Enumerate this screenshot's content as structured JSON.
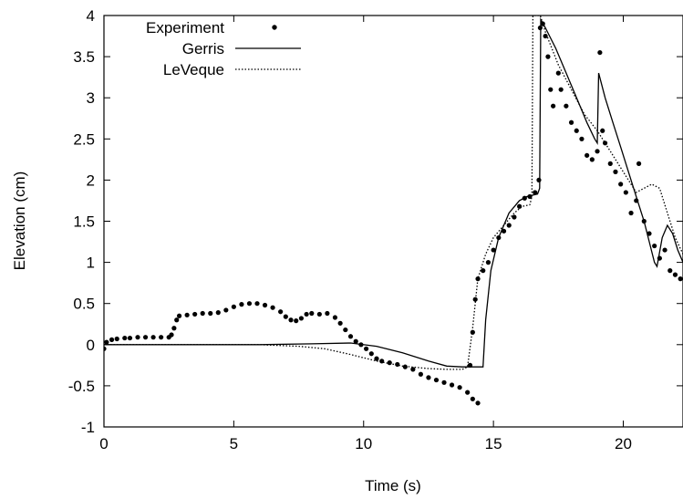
{
  "chart_data": {
    "type": "line",
    "xlabel": "Time (s)",
    "ylabel": "Elevation (cm)",
    "xlim": [
      0,
      22.3
    ],
    "ylim": [
      -1,
      4
    ],
    "x_ticks": [
      0,
      5,
      10,
      15,
      20
    ],
    "y_ticks": [
      -1,
      -0.5,
      0,
      0.5,
      1,
      1.5,
      2,
      2.5,
      3,
      3.5,
      4
    ],
    "x_tick_labels": [
      "0",
      "5",
      "10",
      "15",
      "20"
    ],
    "y_tick_labels": [
      "-1",
      "-0.5",
      "0",
      "0.5",
      "1",
      "1.5",
      "2",
      "2.5",
      "3",
      "3.5",
      "4"
    ],
    "grid": false,
    "legend_position": "top-left",
    "series": [
      {
        "name": "Experiment",
        "style": "points",
        "color": "#000000",
        "points": [
          [
            0.0,
            -0.05
          ],
          [
            0.1,
            0.03
          ],
          [
            0.3,
            0.06
          ],
          [
            0.5,
            0.07
          ],
          [
            0.8,
            0.08
          ],
          [
            1.0,
            0.08
          ],
          [
            1.3,
            0.09
          ],
          [
            1.6,
            0.09
          ],
          [
            1.9,
            0.09
          ],
          [
            2.2,
            0.09
          ],
          [
            2.5,
            0.09
          ],
          [
            2.6,
            0.12
          ],
          [
            2.7,
            0.2
          ],
          [
            2.8,
            0.3
          ],
          [
            2.9,
            0.35
          ],
          [
            3.2,
            0.36
          ],
          [
            3.5,
            0.37
          ],
          [
            3.8,
            0.38
          ],
          [
            4.1,
            0.38
          ],
          [
            4.4,
            0.39
          ],
          [
            4.7,
            0.42
          ],
          [
            5.0,
            0.46
          ],
          [
            5.3,
            0.49
          ],
          [
            5.6,
            0.5
          ],
          [
            5.9,
            0.5
          ],
          [
            6.2,
            0.48
          ],
          [
            6.5,
            0.45
          ],
          [
            6.8,
            0.4
          ],
          [
            7.0,
            0.34
          ],
          [
            7.2,
            0.3
          ],
          [
            7.4,
            0.29
          ],
          [
            7.6,
            0.32
          ],
          [
            7.8,
            0.37
          ],
          [
            8.0,
            0.38
          ],
          [
            8.3,
            0.37
          ],
          [
            8.6,
            0.38
          ],
          [
            8.9,
            0.33
          ],
          [
            9.1,
            0.26
          ],
          [
            9.3,
            0.18
          ],
          [
            9.5,
            0.1
          ],
          [
            9.7,
            0.04
          ],
          [
            9.9,
            0.0
          ],
          [
            10.1,
            -0.05
          ],
          [
            10.3,
            -0.11
          ],
          [
            10.5,
            -0.17
          ],
          [
            10.7,
            -0.2
          ],
          [
            11.0,
            -0.22
          ],
          [
            11.3,
            -0.24
          ],
          [
            11.6,
            -0.27
          ],
          [
            11.9,
            -0.3
          ],
          [
            12.2,
            -0.36
          ],
          [
            12.5,
            -0.4
          ],
          [
            12.8,
            -0.43
          ],
          [
            13.1,
            -0.46
          ],
          [
            13.4,
            -0.49
          ],
          [
            13.7,
            -0.52
          ],
          [
            14.0,
            -0.58
          ],
          [
            14.2,
            -0.66
          ],
          [
            14.4,
            -0.71
          ],
          [
            14.1,
            -0.25
          ],
          [
            14.2,
            0.15
          ],
          [
            14.3,
            0.55
          ],
          [
            14.4,
            0.8
          ],
          [
            14.6,
            0.9
          ],
          [
            14.8,
            1.0
          ],
          [
            15.0,
            1.15
          ],
          [
            15.2,
            1.3
          ],
          [
            15.4,
            1.38
          ],
          [
            15.6,
            1.45
          ],
          [
            15.8,
            1.55
          ],
          [
            16.0,
            1.68
          ],
          [
            16.2,
            1.78
          ],
          [
            16.4,
            1.8
          ],
          [
            16.6,
            1.85
          ],
          [
            16.75,
            2.0
          ],
          [
            16.8,
            3.85
          ],
          [
            16.9,
            3.9
          ],
          [
            17.0,
            3.75
          ],
          [
            17.1,
            3.5
          ],
          [
            17.2,
            3.1
          ],
          [
            17.3,
            2.9
          ],
          [
            17.5,
            3.3
          ],
          [
            17.6,
            3.1
          ],
          [
            17.8,
            2.9
          ],
          [
            18.0,
            2.7
          ],
          [
            18.2,
            2.6
          ],
          [
            18.4,
            2.5
          ],
          [
            18.6,
            2.3
          ],
          [
            18.8,
            2.25
          ],
          [
            19.0,
            2.35
          ],
          [
            19.1,
            3.55
          ],
          [
            19.2,
            2.6
          ],
          [
            19.3,
            2.45
          ],
          [
            19.5,
            2.2
          ],
          [
            19.7,
            2.1
          ],
          [
            19.9,
            1.95
          ],
          [
            20.1,
            1.85
          ],
          [
            20.3,
            1.6
          ],
          [
            20.5,
            1.75
          ],
          [
            20.6,
            2.2
          ],
          [
            20.8,
            1.5
          ],
          [
            21.0,
            1.35
          ],
          [
            21.2,
            1.2
          ],
          [
            21.4,
            1.05
          ],
          [
            21.6,
            1.15
          ],
          [
            21.8,
            0.9
          ],
          [
            22.0,
            0.85
          ],
          [
            22.2,
            0.8
          ]
        ]
      },
      {
        "name": "Gerris",
        "style": "solid",
        "color": "#000000",
        "points": [
          [
            0.0,
            0.0
          ],
          [
            2.0,
            0.0
          ],
          [
            4.0,
            0.0
          ],
          [
            6.0,
            0.0
          ],
          [
            8.0,
            0.01
          ],
          [
            9.5,
            0.02
          ],
          [
            10.5,
            -0.02
          ],
          [
            11.5,
            -0.1
          ],
          [
            12.5,
            -0.2
          ],
          [
            13.2,
            -0.26
          ],
          [
            13.8,
            -0.27
          ],
          [
            14.6,
            -0.27
          ],
          [
            14.7,
            0.3
          ],
          [
            14.9,
            0.9
          ],
          [
            15.2,
            1.3
          ],
          [
            15.6,
            1.6
          ],
          [
            16.0,
            1.75
          ],
          [
            16.3,
            1.8
          ],
          [
            16.7,
            1.83
          ],
          [
            16.78,
            1.9
          ],
          [
            16.82,
            3.95
          ],
          [
            17.0,
            3.85
          ],
          [
            17.4,
            3.6
          ],
          [
            17.8,
            3.3
          ],
          [
            18.2,
            3.0
          ],
          [
            18.6,
            2.7
          ],
          [
            18.9,
            2.5
          ],
          [
            19.0,
            2.45
          ],
          [
            19.05,
            3.3
          ],
          [
            19.3,
            3.0
          ],
          [
            19.6,
            2.7
          ],
          [
            19.9,
            2.4
          ],
          [
            20.2,
            2.1
          ],
          [
            20.5,
            1.8
          ],
          [
            20.8,
            1.5
          ],
          [
            21.0,
            1.25
          ],
          [
            21.2,
            1.0
          ],
          [
            21.3,
            0.95
          ],
          [
            21.5,
            1.3
          ],
          [
            21.7,
            1.45
          ],
          [
            21.9,
            1.35
          ],
          [
            22.1,
            1.15
          ],
          [
            22.3,
            1.0
          ]
        ]
      },
      {
        "name": "LeVeque",
        "style": "dotted",
        "color": "#000000",
        "points": [
          [
            0.0,
            0.0
          ],
          [
            2.0,
            0.0
          ],
          [
            4.0,
            0.0
          ],
          [
            6.0,
            0.0
          ],
          [
            7.5,
            -0.02
          ],
          [
            8.5,
            -0.05
          ],
          [
            9.5,
            -0.12
          ],
          [
            10.5,
            -0.2
          ],
          [
            11.5,
            -0.26
          ],
          [
            12.5,
            -0.29
          ],
          [
            13.2,
            -0.3
          ],
          [
            13.8,
            -0.3
          ],
          [
            14.0,
            -0.27
          ],
          [
            14.2,
            0.2
          ],
          [
            14.4,
            0.8
          ],
          [
            14.7,
            1.1
          ],
          [
            15.0,
            1.3
          ],
          [
            15.4,
            1.45
          ],
          [
            15.8,
            1.6
          ],
          [
            16.1,
            1.68
          ],
          [
            16.4,
            1.7
          ],
          [
            16.48,
            1.8
          ],
          [
            16.52,
            4.0
          ],
          [
            16.8,
            4.0
          ],
          [
            17.0,
            3.8
          ],
          [
            17.5,
            3.4
          ],
          [
            18.0,
            3.1
          ],
          [
            18.5,
            2.8
          ],
          [
            19.0,
            2.6
          ],
          [
            19.5,
            2.35
          ],
          [
            20.0,
            2.1
          ],
          [
            20.5,
            1.85
          ],
          [
            20.8,
            1.9
          ],
          [
            21.1,
            1.95
          ],
          [
            21.4,
            1.9
          ],
          [
            21.7,
            1.6
          ],
          [
            22.0,
            1.3
          ],
          [
            22.3,
            1.1
          ]
        ]
      }
    ]
  }
}
